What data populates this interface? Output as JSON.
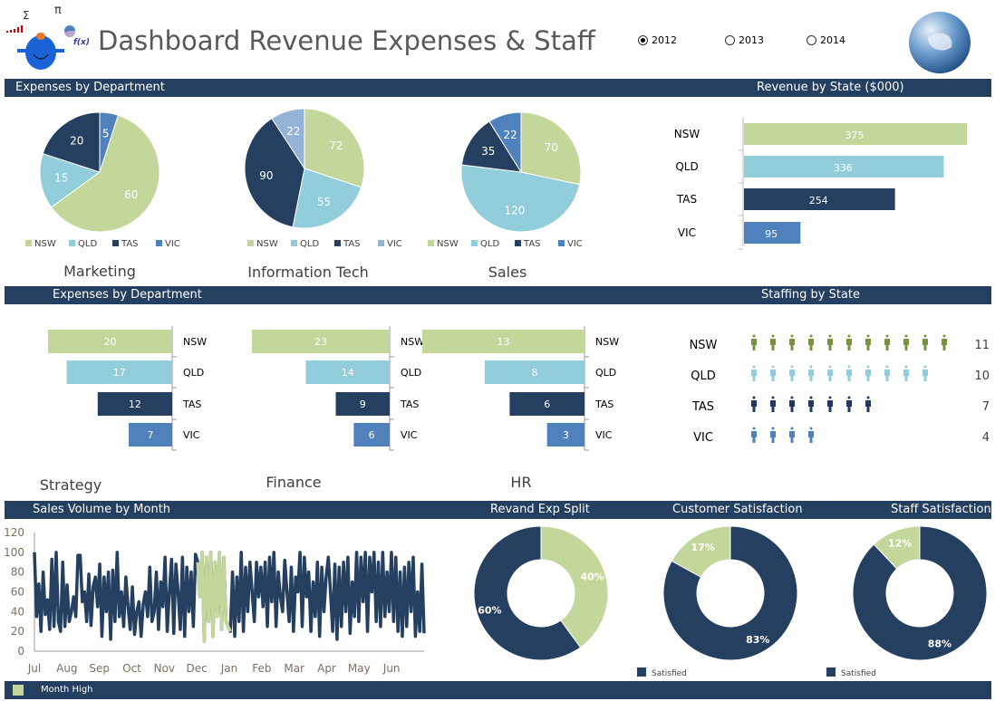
{
  "header": {
    "title": "Dashboard Revenue Expenses & Staff",
    "logo_symbols": [
      "Σ",
      "π",
      "f(x)"
    ],
    "years": [
      {
        "label": "2012",
        "selected": true
      },
      {
        "label": "2013",
        "selected": false
      },
      {
        "label": "2014",
        "selected": false
      }
    ],
    "globe_icon": "globe-icon"
  },
  "colors": {
    "navy": "#243F60",
    "NSW": "#C4D79B",
    "QLD": "#92CDDC",
    "TAS": "#243F60",
    "VIC": "#4F81BD",
    "IT_VIC": "#95B3D7",
    "staff_NSW": "#77933C",
    "staff_QLD": "#92CDDC",
    "staff_TAS": "#1F3864",
    "staff_VIC": "#4F81BD"
  },
  "sections": {
    "expenses1": "Expenses by Department",
    "revenue": "Revenue by State ($000)",
    "expenses2": "Expenses by Department",
    "staffing": "Staffing by State",
    "sales_volume": "Sales Volume by Month",
    "rev_split": "Revand Exp Split",
    "cust_sat": "Customer Satisfaction",
    "staff_sat": "Staff Satisfaction",
    "footer_legend": "Month High"
  },
  "states": [
    "NSW",
    "QLD",
    "TAS",
    "VIC"
  ],
  "chart_data": [
    {
      "type": "pie",
      "title": "Marketing",
      "categories": [
        "NSW",
        "QLD",
        "TAS",
        "VIC"
      ],
      "values": [
        60,
        15,
        20,
        5
      ],
      "legend": "bottom"
    },
    {
      "type": "pie",
      "title": "Information Tech",
      "categories": [
        "NSW",
        "QLD",
        "TAS",
        "VIC"
      ],
      "values": [
        72,
        55,
        90,
        22
      ],
      "legend": "bottom"
    },
    {
      "type": "pie",
      "title": "Sales",
      "categories": [
        "NSW",
        "QLD",
        "TAS",
        "VIC"
      ],
      "values": [
        70,
        120,
        35,
        22
      ],
      "legend": "bottom"
    },
    {
      "type": "bar",
      "title": "Revenue by State ($000)",
      "orientation": "horizontal",
      "categories": [
        "NSW",
        "QLD",
        "TAS",
        "VIC"
      ],
      "values": [
        375,
        336,
        254,
        95
      ]
    },
    {
      "type": "bar",
      "title": "Strategy",
      "orientation": "horizontal-reversed",
      "categories": [
        "NSW",
        "QLD",
        "TAS",
        "VIC"
      ],
      "values": [
        20,
        17,
        12,
        7
      ]
    },
    {
      "type": "bar",
      "title": "Finance",
      "orientation": "horizontal-reversed",
      "categories": [
        "NSW",
        "QLD",
        "TAS",
        "VIC"
      ],
      "values": [
        23,
        14,
        9,
        6
      ]
    },
    {
      "type": "bar",
      "title": "HR",
      "orientation": "horizontal-reversed",
      "categories": [
        "NSW",
        "QLD",
        "TAS",
        "VIC"
      ],
      "values": [
        13,
        8,
        6,
        3
      ]
    },
    {
      "type": "pictogram",
      "title": "Staffing by State",
      "categories": [
        "NSW",
        "QLD",
        "TAS",
        "VIC"
      ],
      "values": [
        11,
        10,
        7,
        4
      ]
    },
    {
      "type": "line",
      "title": "Sales Volume by Month",
      "ylim": [
        0,
        120
      ],
      "yticks": [
        0,
        20,
        40,
        60,
        80,
        100,
        120
      ],
      "months": [
        "Jul",
        "Aug",
        "Sep",
        "Oct",
        "Nov",
        "Dec",
        "Jan",
        "Feb",
        "Mar",
        "Apr",
        "May",
        "Jun"
      ],
      "highlight_month": "Dec",
      "highlight_label": "Month High",
      "values": [
        100,
        35,
        68,
        20,
        80,
        37,
        52,
        22,
        93,
        25,
        100,
        30,
        20,
        90,
        25,
        67,
        30,
        40,
        55,
        35,
        97,
        97,
        50,
        60,
        30,
        78,
        26,
        65,
        75,
        45,
        88,
        15,
        75,
        40,
        80,
        12,
        82,
        30,
        100,
        35,
        60,
        25,
        75,
        45,
        22,
        65,
        17,
        40,
        50,
        15,
        48,
        60,
        35,
        85,
        30,
        40,
        80,
        22,
        70,
        45,
        95,
        20,
        60,
        93,
        18,
        88,
        60,
        22,
        95,
        15,
        85,
        40,
        80,
        25,
        98,
        90,
        55,
        100,
        10,
        95,
        30,
        100,
        15,
        90,
        35,
        100,
        22,
        95,
        30,
        25,
        20,
        80,
        15,
        75,
        30,
        100,
        20,
        85,
        40,
        90,
        60,
        30,
        90,
        55,
        85,
        45,
        90,
        25,
        95,
        50,
        100,
        25,
        80,
        55,
        40,
        92,
        60,
        30,
        85,
        20,
        75,
        60,
        100,
        25,
        95,
        55,
        80,
        20,
        70,
        35,
        90,
        15,
        85,
        40,
        75,
        95,
        60,
        20,
        88,
        12,
        85,
        25,
        90,
        40,
        95,
        18,
        70,
        35,
        100,
        30,
        95,
        50,
        100,
        20,
        95,
        60,
        100,
        30,
        90,
        25,
        100,
        35,
        80,
        40,
        100,
        30,
        95,
        20,
        80,
        15,
        85,
        25,
        90,
        40,
        95,
        15,
        60,
        20,
        88,
        18
      ]
    },
    {
      "type": "pie",
      "subtype": "donut",
      "title": "Revand Exp Split",
      "labels": [
        "60%",
        "40%"
      ],
      "values": [
        60,
        40
      ]
    },
    {
      "type": "pie",
      "subtype": "donut",
      "title": "Customer Satisfaction",
      "labels": [
        "83%",
        "17%"
      ],
      "values": [
        83,
        17
      ],
      "legend": "Satisfied"
    },
    {
      "type": "pie",
      "subtype": "donut",
      "title": "Staff Satisfaction",
      "labels": [
        "88%",
        "12%"
      ],
      "values": [
        88,
        12
      ],
      "legend": "Satisfied"
    }
  ]
}
